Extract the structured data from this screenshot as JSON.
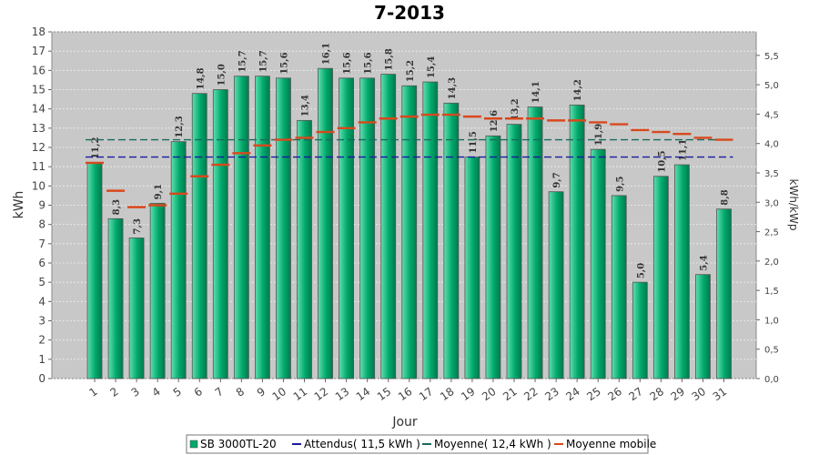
{
  "chart_data": {
    "type": "bar",
    "title": "7-2013",
    "xlabel": "Jour",
    "ylabel": "kWh",
    "ylabel_right": "kWh/kWp",
    "ylim": [
      0,
      18
    ],
    "ylim_right": [
      0,
      5.9
    ],
    "yticks": [
      "0",
      "1",
      "2",
      "3",
      "4",
      "5",
      "6",
      "7",
      "8",
      "9",
      "10",
      "11",
      "12",
      "13",
      "14",
      "15",
      "16",
      "17",
      "18"
    ],
    "yticks_right": [
      "0,0",
      "0,5",
      "1,0",
      "1,5",
      "2,0",
      "2,5",
      "3,0",
      "3,5",
      "4,0",
      "4,5",
      "5,0",
      "5,5"
    ],
    "yticks_right_values": [
      0.0,
      0.5,
      1.0,
      1.5,
      2.0,
      2.5,
      3.0,
      3.5,
      4.0,
      4.5,
      5.0,
      5.5
    ],
    "grid": true,
    "legend_position": "bottom",
    "categories": [
      "1",
      "2",
      "3",
      "4",
      "5",
      "6",
      "7",
      "8",
      "9",
      "10",
      "11",
      "12",
      "13",
      "14",
      "15",
      "16",
      "17",
      "18",
      "19",
      "20",
      "21",
      "22",
      "23",
      "24",
      "25",
      "26",
      "27",
      "28",
      "29",
      "30",
      "31"
    ],
    "series": [
      {
        "name": "SB 3000TL-20",
        "kind": "bar",
        "color": "#00a86b",
        "values": [
          11.2,
          8.3,
          7.3,
          9.1,
          12.3,
          14.8,
          15.0,
          15.7,
          15.7,
          15.6,
          13.4,
          16.1,
          15.6,
          15.6,
          15.8,
          15.2,
          15.4,
          14.3,
          11.5,
          12.6,
          13.2,
          14.1,
          9.7,
          14.2,
          11.9,
          9.5,
          5.0,
          10.5,
          11.1,
          5.4,
          8.8
        ],
        "labels": [
          "11,2",
          "8,3",
          "7,3",
          "9,1",
          "12,3",
          "14,8",
          "15,0",
          "15,7",
          "15,7",
          "15,6",
          "13,4",
          "16,1",
          "15,6",
          "15,6",
          "15,8",
          "15,2",
          "15,4",
          "14,3",
          "11,5",
          "12,6",
          "13,2",
          "14,1",
          "9,7",
          "14,2",
          "11,9",
          "9,5",
          "5,0",
          "10,5",
          "11,1",
          "5,4",
          "8,8"
        ]
      },
      {
        "name": "Attendus( 11,5 kWh )",
        "kind": "hline",
        "color": "#1a1aa0",
        "value": 11.5
      },
      {
        "name": "Moyenne( 12,4 kWh )",
        "kind": "hline",
        "color": "#1a6b5a",
        "value": 12.4
      },
      {
        "name": "Moyenne mobile",
        "kind": "step",
        "color": "#d9481c",
        "values": [
          11.2,
          9.75,
          8.9,
          9.0,
          9.6,
          10.5,
          11.1,
          11.7,
          12.1,
          12.4,
          12.5,
          12.8,
          13.0,
          13.3,
          13.5,
          13.6,
          13.7,
          13.7,
          13.6,
          13.5,
          13.5,
          13.5,
          13.4,
          13.4,
          13.3,
          13.2,
          12.9,
          12.8,
          12.7,
          12.5,
          12.4
        ]
      }
    ]
  },
  "colors": {
    "plot_background": "#c8c8c8",
    "grid": "#eeeeee",
    "bar_edge": "#555555"
  }
}
